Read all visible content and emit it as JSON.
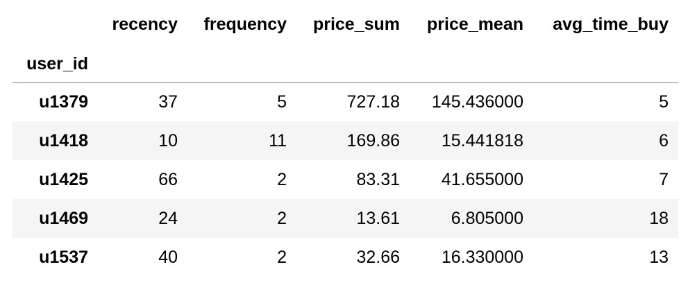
{
  "table": {
    "index_name": "user_id",
    "columns": [
      "recency",
      "frequency",
      "price_sum",
      "price_mean",
      "avg_time_buy"
    ],
    "rows": [
      {
        "user_id": "u1379",
        "recency": "37",
        "frequency": "5",
        "price_sum": "727.18",
        "price_mean": "145.436000",
        "avg_time_buy": "5"
      },
      {
        "user_id": "u1418",
        "recency": "10",
        "frequency": "11",
        "price_sum": "169.86",
        "price_mean": "15.441818",
        "avg_time_buy": "6"
      },
      {
        "user_id": "u1425",
        "recency": "66",
        "frequency": "2",
        "price_sum": "83.31",
        "price_mean": "41.655000",
        "avg_time_buy": "7"
      },
      {
        "user_id": "u1469",
        "recency": "24",
        "frequency": "2",
        "price_sum": "13.61",
        "price_mean": "6.805000",
        "avg_time_buy": "18"
      },
      {
        "user_id": "u1537",
        "recency": "40",
        "frequency": "2",
        "price_sum": "32.66",
        "price_mean": "16.330000",
        "avg_time_buy": "13"
      }
    ]
  }
}
